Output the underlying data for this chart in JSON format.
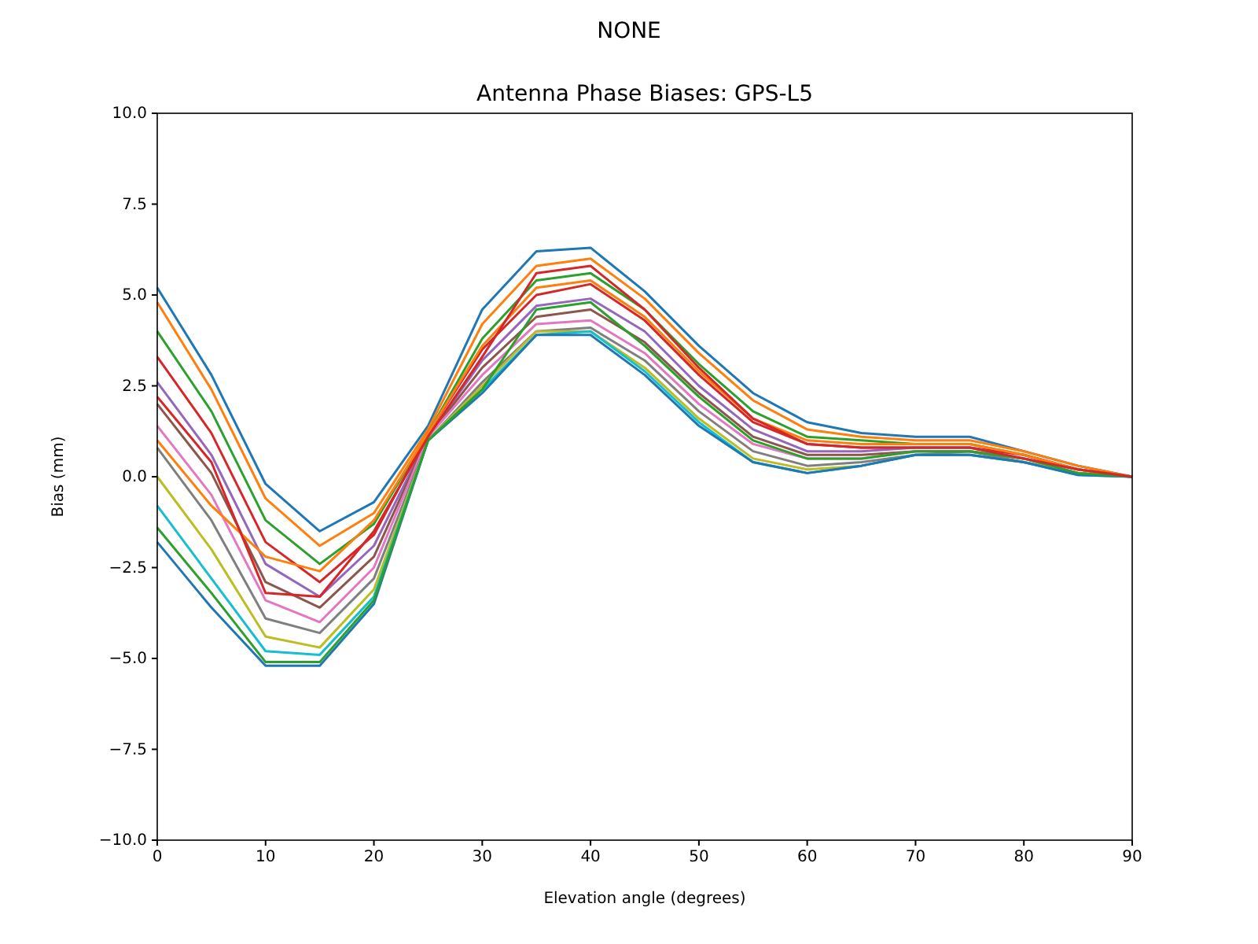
{
  "chart_data": {
    "type": "line",
    "title": "NONE",
    "subtitle": "Antenna Phase Biases: GPS-L5",
    "xlabel": "Elevation angle (degrees)",
    "ylabel": "Bias (mm)",
    "x": [
      0,
      5,
      10,
      15,
      20,
      25,
      30,
      35,
      40,
      45,
      50,
      55,
      60,
      65,
      70,
      75,
      80,
      85,
      90
    ],
    "xlim": [
      0,
      90
    ],
    "xticks": [
      0,
      10,
      20,
      30,
      40,
      50,
      60,
      70,
      80,
      90
    ],
    "ylim": [
      -10,
      10
    ],
    "yticks": [
      {
        "value": -10,
        "label": "−10.0"
      },
      {
        "value": -7.5,
        "label": "−7.5"
      },
      {
        "value": -5,
        "label": "−5.0"
      },
      {
        "value": -2.5,
        "label": "−2.5"
      },
      {
        "value": 0,
        "label": "0.0"
      },
      {
        "value": 2.5,
        "label": "2.5"
      },
      {
        "value": 5,
        "label": "5.0"
      },
      {
        "value": 7.5,
        "label": "7.5"
      },
      {
        "value": 10,
        "label": "10.0"
      }
    ],
    "grid": false,
    "line_style": "solid",
    "series": [
      {
        "color": "#1f77b4",
        "values": [
          5.2,
          2.8,
          -0.2,
          -1.5,
          -0.7,
          1.4,
          4.6,
          6.2,
          6.3,
          5.1,
          3.6,
          2.3,
          1.5,
          1.2,
          1.1,
          1.1,
          0.7,
          0.3,
          0
        ]
      },
      {
        "color": "#ff7f0e",
        "values": [
          4.8,
          2.4,
          -0.6,
          -1.9,
          -1.0,
          1.3,
          4.2,
          5.8,
          6.0,
          4.9,
          3.4,
          2.1,
          1.3,
          1.1,
          1.0,
          1.0,
          0.7,
          0.3,
          0
        ]
      },
      {
        "color": "#2ca02c",
        "values": [
          4.0,
          1.8,
          -1.2,
          -2.4,
          -1.3,
          1.2,
          3.8,
          5.4,
          5.6,
          4.6,
          3.1,
          1.8,
          1.1,
          1.0,
          0.9,
          0.9,
          0.6,
          0.2,
          0
        ]
      },
      {
        "color": "#d62728",
        "values": [
          3.3,
          1.2,
          -1.8,
          -2.9,
          -1.6,
          1.2,
          3.5,
          5.0,
          5.3,
          4.3,
          2.8,
          1.5,
          0.9,
          0.8,
          0.8,
          0.8,
          0.6,
          0.2,
          0
        ]
      },
      {
        "color": "#9467bd",
        "values": [
          2.6,
          0.6,
          -2.4,
          -3.3,
          -1.9,
          1.1,
          3.2,
          4.7,
          4.9,
          4.0,
          2.5,
          1.3,
          0.7,
          0.7,
          0.8,
          0.8,
          0.5,
          0.2,
          0
        ]
      },
      {
        "color": "#8c564b",
        "values": [
          2.0,
          0.1,
          -2.9,
          -3.6,
          -2.2,
          1.1,
          3.0,
          4.4,
          4.6,
          3.7,
          2.3,
          1.1,
          0.6,
          0.6,
          0.7,
          0.7,
          0.5,
          0.1,
          0
        ]
      },
      {
        "color": "#e377c2",
        "values": [
          1.4,
          -0.5,
          -3.4,
          -4.0,
          -2.5,
          1.1,
          2.8,
          4.2,
          4.3,
          3.4,
          2.0,
          0.9,
          0.5,
          0.5,
          0.7,
          0.7,
          0.5,
          0.1,
          0
        ]
      },
      {
        "color": "#7f7f7f",
        "values": [
          0.8,
          -1.2,
          -3.9,
          -4.3,
          -2.8,
          1.0,
          2.6,
          4.0,
          4.1,
          3.2,
          1.8,
          0.7,
          0.3,
          0.4,
          0.6,
          0.7,
          0.4,
          0.1,
          0
        ]
      },
      {
        "color": "#bcbd22",
        "values": [
          0.0,
          -2.0,
          -4.4,
          -4.7,
          -3.1,
          1.0,
          2.5,
          4.0,
          4.0,
          3.0,
          1.6,
          0.5,
          0.2,
          0.3,
          0.6,
          0.6,
          0.4,
          0.1,
          0
        ]
      },
      {
        "color": "#17becf",
        "values": [
          -0.8,
          -2.8,
          -4.8,
          -4.9,
          -3.3,
          1.0,
          2.4,
          3.9,
          4.0,
          2.9,
          1.5,
          0.4,
          0.1,
          0.3,
          0.6,
          0.6,
          0.4,
          0.05,
          0
        ]
      },
      {
        "color": "#1f77b4",
        "values": [
          -1.8,
          -3.6,
          -5.2,
          -5.2,
          -3.5,
          1.0,
          2.3,
          3.9,
          3.9,
          2.8,
          1.4,
          0.4,
          0.1,
          0.3,
          0.6,
          0.6,
          0.4,
          0.05,
          0
        ]
      },
      {
        "color": "#ff7f0e",
        "values": [
          1.0,
          -0.8,
          -2.2,
          -2.6,
          -1.2,
          1.2,
          3.6,
          5.2,
          5.4,
          4.4,
          2.9,
          1.6,
          1.0,
          0.9,
          0.9,
          0.9,
          0.6,
          0.2,
          0
        ]
      },
      {
        "color": "#2ca02c",
        "values": [
          -1.4,
          -3.2,
          -5.1,
          -5.1,
          -3.4,
          1.0,
          2.4,
          4.6,
          4.8,
          3.6,
          2.2,
          1.0,
          0.5,
          0.5,
          0.7,
          0.7,
          0.5,
          0.1,
          0
        ]
      },
      {
        "color": "#d62728",
        "values": [
          2.2,
          0.4,
          -3.2,
          -3.3,
          -1.5,
          1.1,
          3.3,
          5.6,
          5.8,
          4.6,
          3.0,
          1.6,
          0.9,
          0.8,
          0.8,
          0.8,
          0.5,
          0.2,
          0
        ]
      }
    ]
  }
}
